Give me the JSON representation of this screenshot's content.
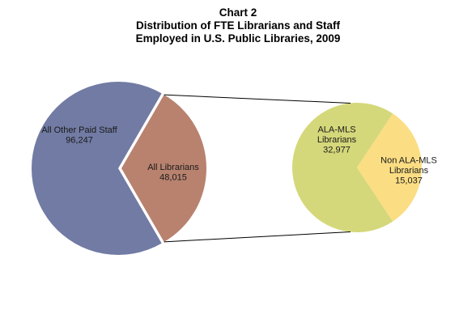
{
  "chart_data": {
    "type": "pie",
    "title_lines": [
      "Chart 2",
      "Distribution of  FTE Librarians and Staff",
      "Employed in U.S. Public Libraries, 2009"
    ],
    "main_pie": {
      "slices": [
        {
          "label_lines": [
            "All Other Paid Staff",
            "96,247"
          ],
          "value": 96247,
          "color": "#717ba3"
        },
        {
          "label_lines": [
            "All Librarians",
            "48,015"
          ],
          "value": 48015,
          "color": "#b8826f",
          "exploded": true
        }
      ]
    },
    "breakdown_pie": {
      "of_slice": "All Librarians",
      "slices": [
        {
          "label_lines": [
            "ALA-MLS",
            "Librarians",
            "32,977"
          ],
          "value": 32977,
          "color": "#d5d87a"
        },
        {
          "label_lines": [
            "Non ALA-MLS",
            "Librarians",
            "15,037"
          ],
          "value": 15037,
          "color": "#fbdd83"
        }
      ]
    },
    "legend": "none"
  }
}
